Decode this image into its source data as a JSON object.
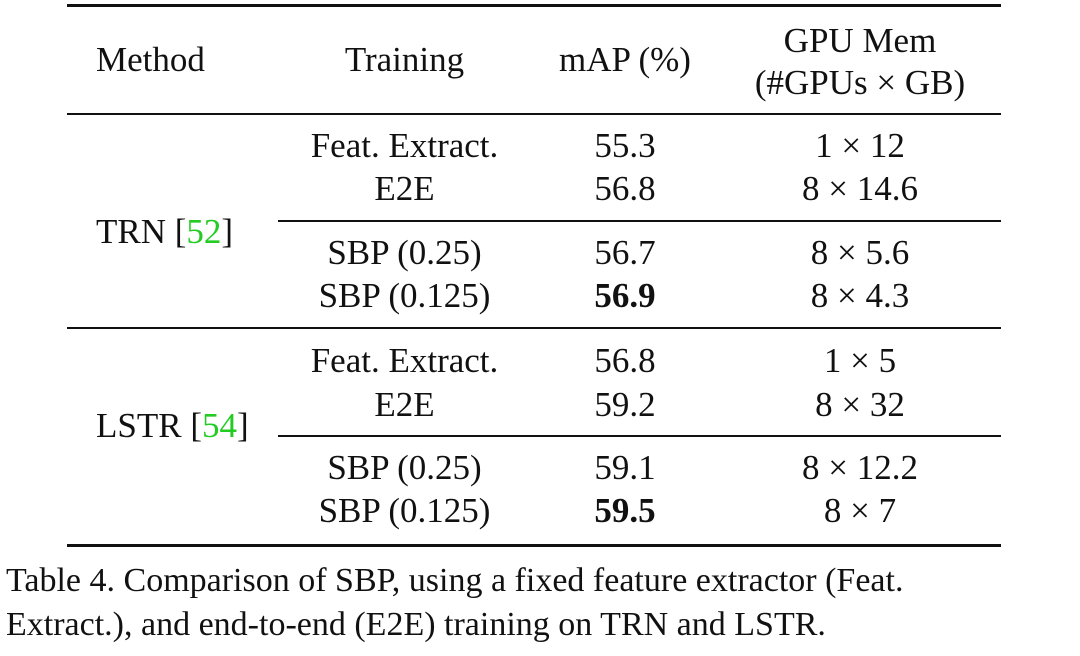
{
  "table": {
    "headers": {
      "method": "Method",
      "training": "Training",
      "map": "mAP (%)",
      "mem_line1": "GPU Mem",
      "mem_line2": "(#GPUs × GB)"
    },
    "groups": [
      {
        "method": "TRN",
        "ref": "52",
        "rows": [
          {
            "training": "Feat. Extract.",
            "map": "55.3",
            "mem": "1 × 12",
            "bold": false
          },
          {
            "training": "E2E",
            "map": "56.8",
            "mem": "8 × 14.6",
            "bold": false
          },
          {
            "training": "SBP (0.25)",
            "map": "56.7",
            "mem": "8 × 5.6",
            "bold": false
          },
          {
            "training": "SBP (0.125)",
            "map": "56.9",
            "mem": "8 × 4.3",
            "bold": true
          }
        ]
      },
      {
        "method": "LSTR",
        "ref": "54",
        "rows": [
          {
            "training": "Feat. Extract.",
            "map": "56.8",
            "mem": "1 × 5",
            "bold": false
          },
          {
            "training": "E2E",
            "map": "59.2",
            "mem": "8 × 32",
            "bold": false
          },
          {
            "training": "SBP (0.25)",
            "map": "59.1",
            "mem": "8 × 12.2",
            "bold": false
          },
          {
            "training": "SBP (0.125)",
            "map": "59.5",
            "mem": "8 × 7",
            "bold": true
          }
        ]
      }
    ]
  },
  "caption": {
    "line1": "Table 4. Comparison of SBP, using a fixed feature extractor (Feat.",
    "line2": "Extract.), and end-to-end (E2E) training on TRN and LSTR."
  },
  "colors": {
    "text": "#111111",
    "ref_link": "#22cc22"
  }
}
